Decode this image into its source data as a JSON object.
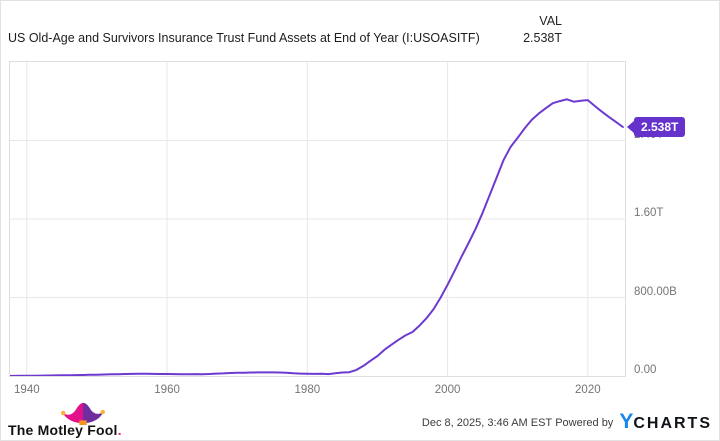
{
  "header": {
    "title": "US Old-Age and Survivors Insurance Trust Fund Assets at End of Year (I:USOASITF)",
    "val_label": "VAL",
    "val_value": "2.538T"
  },
  "chart_data": {
    "type": "line",
    "title": "US Old-Age and Survivors Insurance Trust Fund Assets at End of Year (I:USOASITF)",
    "unit": "billions of USD",
    "grid": true,
    "legend_position": "none",
    "x_range": [
      1937.6,
      2025.3
    ],
    "y_range_billions": [
      0,
      3200
    ],
    "x_ticks": [
      1940,
      1960,
      1980,
      2000,
      2020
    ],
    "y_ticks": [
      {
        "value": 0,
        "label": "0.00"
      },
      {
        "value": 800,
        "label": "800.00B"
      },
      {
        "value": 1600,
        "label": "1.60T"
      },
      {
        "value": 2400,
        "label": "2.40T"
      }
    ],
    "last_value_label": "2.538T",
    "series": [
      {
        "name": "US Old-Age and Survivors Insurance Trust Fund Assets",
        "color": "#6D3AD1",
        "x": [
          1937,
          1938,
          1939,
          1940,
          1941,
          1942,
          1943,
          1944,
          1945,
          1946,
          1947,
          1948,
          1949,
          1950,
          1951,
          1952,
          1953,
          1954,
          1955,
          1956,
          1957,
          1958,
          1959,
          1960,
          1961,
          1962,
          1963,
          1964,
          1965,
          1966,
          1967,
          1968,
          1969,
          1970,
          1971,
          1972,
          1973,
          1974,
          1975,
          1976,
          1977,
          1978,
          1979,
          1980,
          1981,
          1982,
          1983,
          1984,
          1985,
          1986,
          1987,
          1988,
          1989,
          1990,
          1991,
          1992,
          1993,
          1994,
          1995,
          1996,
          1997,
          1998,
          1999,
          2000,
          2001,
          2002,
          2003,
          2004,
          2005,
          2006,
          2007,
          2008,
          2009,
          2010,
          2011,
          2012,
          2013,
          2014,
          2015,
          2016,
          2017,
          2018,
          2019,
          2020,
          2021,
          2022,
          2023,
          2024,
          2025
        ],
        "values": [
          0.8,
          1.1,
          1.7,
          2.0,
          2.8,
          3.7,
          4.8,
          6.0,
          7.1,
          8.2,
          9.4,
          10.7,
          11.8,
          13.7,
          15.5,
          17.4,
          18.7,
          20.6,
          21.7,
          22.5,
          22.4,
          21.9,
          20.1,
          20.3,
          19.7,
          18.3,
          18.5,
          19.1,
          18.2,
          20.6,
          24.2,
          26.0,
          30.1,
          32.5,
          33.8,
          35.3,
          36.5,
          36.8,
          37.0,
          35.4,
          32.5,
          27.5,
          24.7,
          22.8,
          21.5,
          22.1,
          19.7,
          27.1,
          35.8,
          39.1,
          62.1,
          102.9,
          155.1,
          203.4,
          267.8,
          319.2,
          369.3,
          413.5,
          447.9,
          514.0,
          589.1,
          681.6,
          798.8,
          930.8,
          1071.5,
          1217.5,
          1355.3,
          1500.6,
          1663.0,
          1844.3,
          2023.6,
          2202.9,
          2336.8,
          2429.0,
          2524.1,
          2609.7,
          2674.1,
          2729.2,
          2780.3,
          2801.3,
          2820.3,
          2795.1,
          2804.3,
          2811.5,
          2751.9,
          2693.0,
          2641.0,
          2590.0,
          2538.0
        ]
      }
    ],
    "colors": {
      "line": "#6D3AD1",
      "tag_background": "#6533CB",
      "grid": "#e8e8e8",
      "axis_text": "#757575"
    }
  },
  "footer": {
    "brand": "The Motley Fool",
    "brand_period": ".",
    "datetime": "Dec 8, 2025, 3:46 AM EST",
    "powered_by": "Powered by",
    "ycharts_y": "Y",
    "ycharts_rest": "CHARTS"
  }
}
